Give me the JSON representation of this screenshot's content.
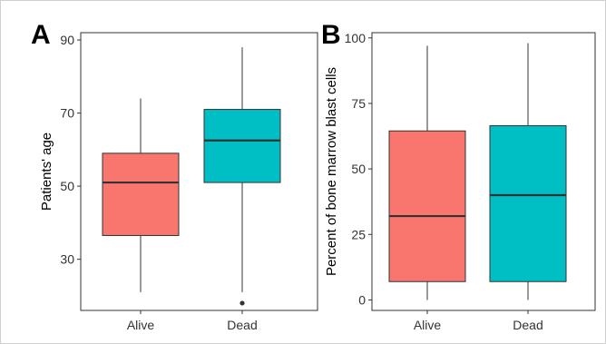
{
  "chart_data": [
    {
      "type": "boxplot",
      "panel": "A",
      "ylabel": "Patients' age",
      "xlabel": "",
      "categories": [
        "Alive",
        "Dead"
      ],
      "ylim": [
        16,
        92
      ],
      "yticks": [
        30,
        50,
        70,
        90
      ],
      "grid": false,
      "boxes": [
        {
          "category": "Alive",
          "min": 21,
          "q1": 36.5,
          "median": 51,
          "q3": 59,
          "max": 74,
          "outliers": [],
          "color": "#F8766D"
        },
        {
          "category": "Dead",
          "min": 21,
          "q1": 51,
          "median": 62.5,
          "q3": 71,
          "max": 88,
          "outliers": [
            18
          ],
          "color": "#00BFC4"
        }
      ]
    },
    {
      "type": "boxplot",
      "panel": "B",
      "ylabel": "Percent of bone marrow blast cells",
      "xlabel": "",
      "categories": [
        "Alive",
        "Dead"
      ],
      "ylim": [
        -4,
        102
      ],
      "yticks": [
        0,
        25,
        50,
        75,
        100
      ],
      "grid": false,
      "boxes": [
        {
          "category": "Alive",
          "min": 0,
          "q1": 7,
          "median": 32,
          "q3": 64.5,
          "max": 97,
          "outliers": [],
          "color": "#F8766D"
        },
        {
          "category": "Dead",
          "min": 0,
          "q1": 7,
          "median": 40,
          "q3": 66.5,
          "max": 98,
          "outliers": [],
          "color": "#00BFC4"
        }
      ]
    }
  ]
}
